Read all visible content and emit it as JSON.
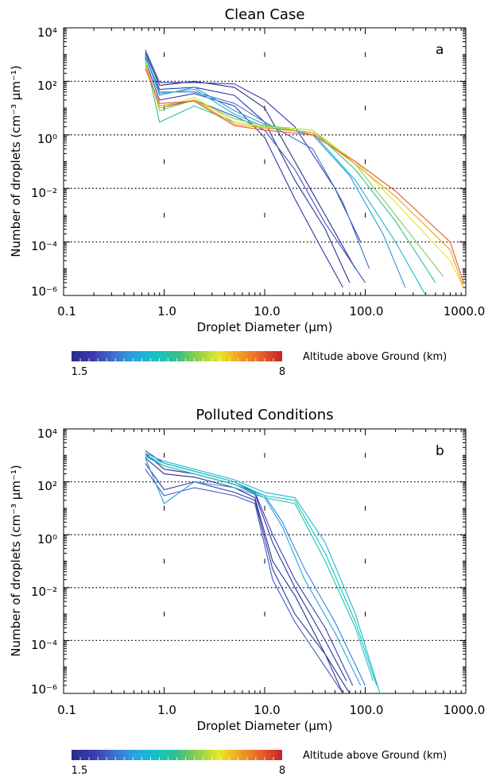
{
  "colorbar": {
    "label": "Altitude above Ground (km)",
    "min_label": "1.5",
    "max_label": "8",
    "min": 1.5,
    "max": 8,
    "colors": [
      "#2b2b8f",
      "#3a3ab0",
      "#3f6fd0",
      "#26a6e0",
      "#14c2c8",
      "#33c08a",
      "#8fd04a",
      "#e8e82a",
      "#f0a020",
      "#e8602a",
      "#c8202a"
    ]
  },
  "chart_data": [
    {
      "type": "line",
      "title": "Clean Case",
      "panel_label": "a",
      "xlabel": "Droplet Diameter (μm)",
      "ylabel": "Number of droplets (cm⁻³ μm⁻¹)",
      "xscale": "log",
      "yscale": "log",
      "xlim": [
        0.1,
        1000
      ],
      "ylim": [
        1e-06,
        10000.0
      ],
      "x_tick_labels": [
        "0.1",
        "1.0",
        "10.0",
        "100.0",
        "1000.0"
      ],
      "y_tick_labels": [
        "10⁻⁶",
        "10⁻⁴",
        "10⁻²",
        "10⁰",
        "10²",
        "10⁴"
      ],
      "grid": "dotted horizontal lines at 10⁻⁴, 10⁻², 10⁰, 10²",
      "series": [
        {
          "altitude_km": 1.5,
          "x": [
            0.65,
            0.9,
            2,
            5,
            10,
            20,
            40,
            80
          ],
          "y": [
            1200,
            70,
            100,
            60,
            10,
            0.1,
            0.001,
            1e-05
          ]
        },
        {
          "altitude_km": 1.7,
          "x": [
            0.65,
            0.9,
            2,
            5,
            10,
            20,
            40,
            70
          ],
          "y": [
            800,
            50,
            60,
            30,
            3,
            0.02,
            0.0003,
            3e-06
          ]
        },
        {
          "altitude_km": 1.9,
          "x": [
            0.65,
            0.9,
            2,
            5,
            10,
            20,
            35,
            60
          ],
          "y": [
            600,
            20,
            35,
            12,
            0.8,
            0.004,
            8e-05,
            2e-06
          ]
        },
        {
          "altitude_km": 2.1,
          "x": [
            0.65,
            0.9,
            2,
            5,
            10,
            20,
            50,
            90
          ],
          "y": [
            1500,
            90,
            90,
            80,
            20,
            2,
            0.01,
            0.0001
          ]
        },
        {
          "altitude_km": 2.4,
          "x": [
            0.65,
            0.9,
            2,
            5,
            10,
            20,
            40,
            100
          ],
          "y": [
            500,
            10,
            20,
            5,
            1.5,
            0.05,
            0.0005,
            3e-06
          ]
        },
        {
          "altitude_km": 2.8,
          "x": [
            0.65,
            0.9,
            2,
            5,
            10,
            30,
            60,
            110
          ],
          "y": [
            1000,
            40,
            40,
            15,
            3,
            0.3,
            0.003,
            1e-05
          ]
        },
        {
          "altitude_km": 3.3,
          "x": [
            0.65,
            0.9,
            2,
            5,
            10,
            30,
            70,
            150,
            250
          ],
          "y": [
            900,
            30,
            60,
            8,
            2.5,
            1,
            0.03,
            0.0002,
            2e-06
          ]
        },
        {
          "altitude_km": 3.9,
          "x": [
            0.65,
            0.9,
            2,
            5,
            10,
            30,
            80,
            200,
            400
          ],
          "y": [
            1100,
            35,
            50,
            6,
            2,
            1.2,
            0.02,
            0.0001,
            1e-06
          ]
        },
        {
          "altitude_km": 4.6,
          "x": [
            0.65,
            0.9,
            2,
            5,
            10,
            30,
            80,
            200,
            500
          ],
          "y": [
            700,
            3,
            12,
            3,
            2,
            1.5,
            0.05,
            0.0006,
            3e-06
          ]
        },
        {
          "altitude_km": 5.3,
          "x": [
            0.65,
            0.9,
            2,
            5,
            10,
            30,
            80,
            200,
            600
          ],
          "y": [
            600,
            8,
            20,
            4,
            2.2,
            1.5,
            0.08,
            0.001,
            5e-06
          ]
        },
        {
          "altitude_km": 6.0,
          "x": [
            0.65,
            0.9,
            2,
            5,
            10,
            30,
            80,
            200,
            700,
            950
          ],
          "y": [
            500,
            10,
            25,
            3,
            2,
            1.5,
            0.1,
            0.003,
            2e-05,
            2e-06
          ]
        },
        {
          "altitude_km": 6.7,
          "x": [
            0.65,
            0.9,
            2,
            5,
            10,
            30,
            80,
            200,
            700,
            950
          ],
          "y": [
            400,
            12,
            20,
            2.5,
            1.8,
            1.2,
            0.08,
            0.005,
            5e-05,
            2e-06
          ]
        },
        {
          "altitude_km": 7.4,
          "x": [
            0.65,
            0.9,
            2,
            5,
            10,
            30,
            80,
            200,
            700,
            950
          ],
          "y": [
            300,
            15,
            18,
            2.2,
            1.5,
            1,
            0.1,
            0.008,
            0.0001,
            3e-06
          ]
        }
      ]
    },
    {
      "type": "line",
      "title": "Polluted Conditions",
      "panel_label": "b",
      "xlabel": "Droplet Diameter (μm)",
      "ylabel": "Number of droplets (cm⁻³ μm⁻¹)",
      "xscale": "log",
      "yscale": "log",
      "xlim": [
        0.1,
        1000
      ],
      "ylim": [
        1e-06,
        10000.0
      ],
      "x_tick_labels": [
        "0.1",
        "1.0",
        "10.0",
        "100.0",
        "1000.0"
      ],
      "y_tick_labels": [
        "10⁻⁶",
        "10⁻⁴",
        "10⁻²",
        "10⁰",
        "10²",
        "10⁴"
      ],
      "grid": "dotted horizontal lines at 10⁻⁴, 10⁻², 10⁰, 10²",
      "series": [
        {
          "altitude_km": 1.5,
          "x": [
            0.65,
            1,
            2,
            5,
            8,
            12,
            20,
            40,
            70
          ],
          "y": [
            800,
            200,
            150,
            60,
            25,
            0.1,
            0.005,
            3e-05,
            1e-06
          ]
        },
        {
          "altitude_km": 1.7,
          "x": [
            0.65,
            1,
            2,
            5,
            8,
            12,
            20,
            40,
            65
          ],
          "y": [
            1200,
            300,
            200,
            80,
            35,
            0.5,
            0.01,
            0.0001,
            3e-06
          ]
        },
        {
          "altitude_km": 1.9,
          "x": [
            0.65,
            1,
            2,
            5,
            8,
            12,
            20,
            40,
            60
          ],
          "y": [
            500,
            50,
            100,
            40,
            20,
            0.05,
            0.001,
            3e-05,
            1e-06
          ]
        },
        {
          "altitude_km": 2.2,
          "x": [
            0.65,
            1,
            2,
            5,
            8,
            12,
            20,
            40,
            75
          ],
          "y": [
            1500,
            500,
            250,
            100,
            40,
            1,
            0.02,
            0.0003,
            2e-06
          ]
        },
        {
          "altitude_km": 2.5,
          "x": [
            0.65,
            1,
            2,
            5,
            8,
            12,
            20,
            40,
            60
          ],
          "y": [
            300,
            30,
            60,
            30,
            15,
            0.02,
            0.0005,
            1e-05,
            1e-06
          ]
        },
        {
          "altitude_km": 3.0,
          "x": [
            0.65,
            1,
            2,
            5,
            10,
            15,
            25,
            50,
            100
          ],
          "y": [
            1000,
            400,
            200,
            80,
            30,
            3,
            0.05,
            0.0005,
            2e-06
          ]
        },
        {
          "altitude_km": 3.4,
          "x": [
            0.65,
            1,
            2,
            5,
            10,
            15,
            25,
            50,
            90
          ],
          "y": [
            800,
            15,
            100,
            60,
            25,
            2,
            0.02,
            0.0002,
            2e-06
          ]
        },
        {
          "altitude_km": 3.8,
          "x": [
            0.65,
            1,
            2,
            5,
            10,
            20,
            40,
            80,
            140
          ],
          "y": [
            1200,
            600,
            300,
            120,
            40,
            25,
            0.5,
            0.001,
            1e-06
          ]
        },
        {
          "altitude_km": 4.1,
          "x": [
            0.65,
            1,
            2,
            5,
            10,
            20,
            40,
            80,
            130
          ],
          "y": [
            1000,
            500,
            250,
            100,
            30,
            20,
            0.2,
            0.0005,
            2e-06
          ]
        },
        {
          "altitude_km": 4.4,
          "x": [
            0.65,
            1,
            2,
            5,
            10,
            20,
            40,
            80,
            120
          ],
          "y": [
            900,
            400,
            200,
            80,
            25,
            15,
            0.1,
            0.0003,
            3e-06
          ]
        }
      ]
    }
  ]
}
